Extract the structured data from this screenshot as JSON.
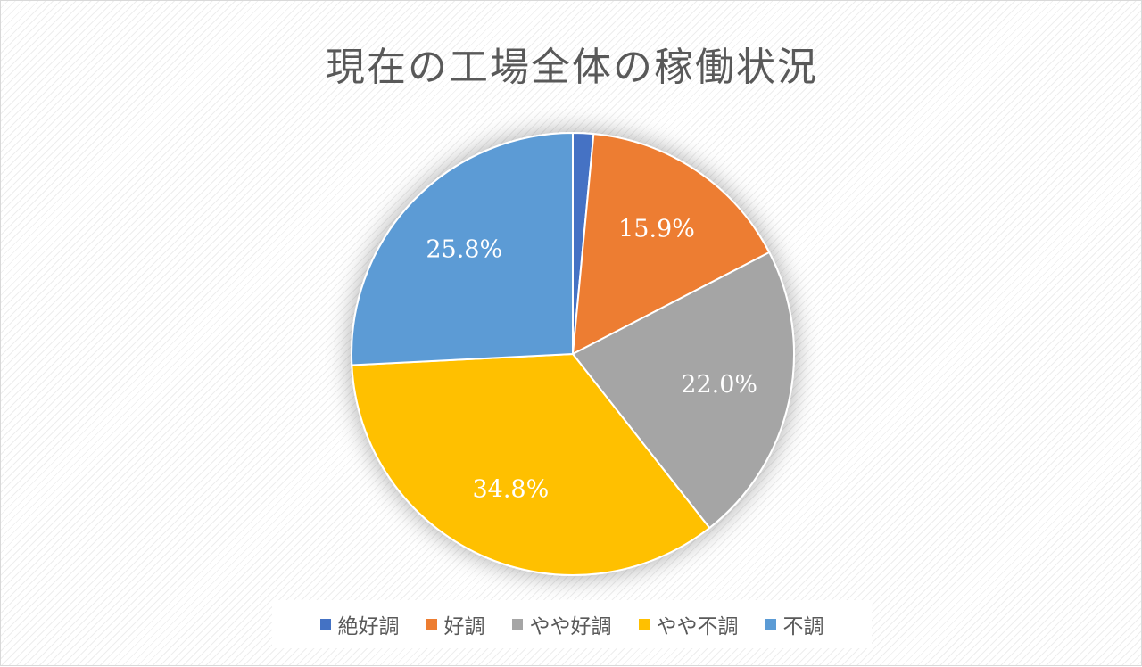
{
  "chart_data": {
    "type": "pie",
    "title": "現在の工場全体の稼働状況",
    "categories": [
      "絶好調",
      "好調",
      "やや好調",
      "やや不調",
      "不調"
    ],
    "values": [
      1.5,
      15.9,
      22.0,
      34.8,
      25.8
    ],
    "data_labels": [
      "",
      "15.9%",
      "22.0%",
      "34.8%",
      "25.8%"
    ],
    "colors": [
      "#4472c4",
      "#ed7d31",
      "#a5a5a5",
      "#ffc000",
      "#5b9bd5"
    ],
    "legend_position": "bottom",
    "start_angle": "top",
    "direction": "clockwise"
  }
}
